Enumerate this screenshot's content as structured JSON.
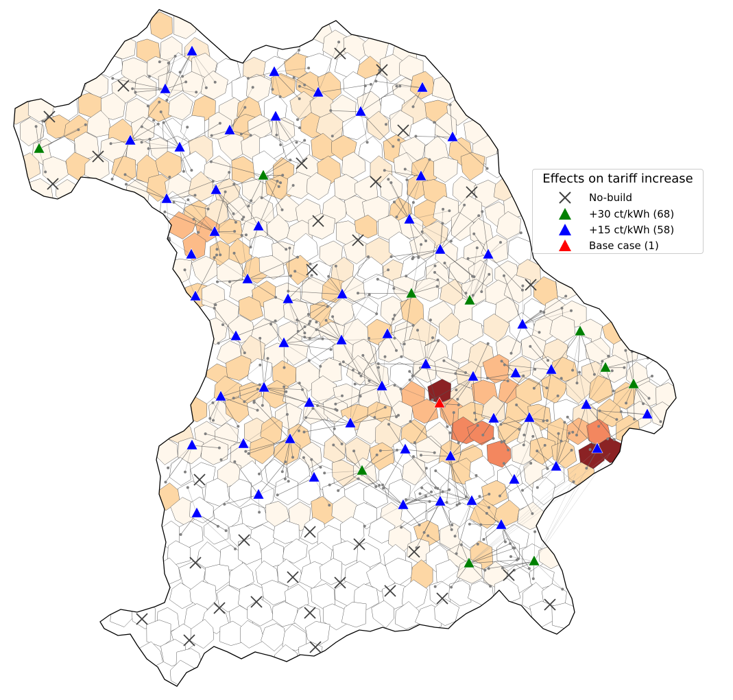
{
  "map": {
    "region": "Bavaria",
    "colors": {
      "border": "#000000",
      "cell_line": "#555555",
      "link_line": "#555555",
      "node": "#808080",
      "shade_1": "#fff7ec",
      "shade_2": "#fdebd2",
      "shade_3": "#fdd7a5",
      "shade_4": "#fcbb88",
      "shade_5": "#f3875f",
      "shade_6": "#8b2224"
    },
    "markers": {
      "nobuild": [
        [
          180,
          125
        ],
        [
          496,
          78
        ],
        [
          557,
          102
        ],
        [
          72,
          170
        ],
        [
          143,
          228
        ],
        [
          77,
          268
        ],
        [
          440,
          238
        ],
        [
          548,
          265
        ],
        [
          588,
          190
        ],
        [
          688,
          280
        ],
        [
          464,
          322
        ],
        [
          522,
          350
        ],
        [
          455,
          393
        ],
        [
          774,
          415
        ],
        [
          291,
          699
        ],
        [
          285,
          820
        ],
        [
          356,
          787
        ],
        [
          452,
          775
        ],
        [
          524,
          793
        ],
        [
          604,
          804
        ],
        [
          427,
          841
        ],
        [
          496,
          849
        ],
        [
          569,
          861
        ],
        [
          645,
          872
        ],
        [
          742,
          838
        ],
        [
          802,
          881
        ],
        [
          374,
          877
        ],
        [
          320,
          886
        ],
        [
          452,
          893
        ],
        [
          207,
          902
        ],
        [
          276,
          933
        ],
        [
          460,
          943
        ]
      ],
      "green": [
        [
          57,
          217
        ],
        [
          384,
          256
        ],
        [
          600,
          428
        ],
        [
          685,
          438
        ],
        [
          846,
          483
        ],
        [
          883,
          536
        ],
        [
          924,
          560
        ],
        [
          528,
          686
        ],
        [
          684,
          821
        ],
        [
          779,
          818
        ]
      ],
      "blue": [
        [
          280,
          75
        ],
        [
          400,
          105
        ],
        [
          464,
          135
        ],
        [
          241,
          130
        ],
        [
          616,
          128
        ],
        [
          526,
          163
        ],
        [
          402,
          170
        ],
        [
          335,
          190
        ],
        [
          190,
          205
        ],
        [
          262,
          215
        ],
        [
          660,
          200
        ],
        [
          614,
          257
        ],
        [
          315,
          277
        ],
        [
          243,
          290
        ],
        [
          597,
          320
        ],
        [
          377,
          330
        ],
        [
          313,
          338
        ],
        [
          642,
          364
        ],
        [
          712,
          371
        ],
        [
          279,
          371
        ],
        [
          361,
          407
        ],
        [
          285,
          432
        ],
        [
          420,
          436
        ],
        [
          499,
          429
        ],
        [
          762,
          473
        ],
        [
          344,
          490
        ],
        [
          414,
          500
        ],
        [
          498,
          496
        ],
        [
          565,
          487
        ],
        [
          621,
          531
        ],
        [
          690,
          549
        ],
        [
          752,
          544
        ],
        [
          804,
          539
        ],
        [
          385,
          565
        ],
        [
          557,
          563
        ],
        [
          451,
          587
        ],
        [
          322,
          578
        ],
        [
          855,
          590
        ],
        [
          944,
          604
        ],
        [
          720,
          610
        ],
        [
          772,
          609
        ],
        [
          511,
          617
        ],
        [
          423,
          640
        ],
        [
          355,
          647
        ],
        [
          280,
          649
        ],
        [
          591,
          655
        ],
        [
          657,
          665
        ],
        [
          871,
          654
        ],
        [
          811,
          680
        ],
        [
          458,
          696
        ],
        [
          750,
          699
        ],
        [
          377,
          721
        ],
        [
          642,
          731
        ],
        [
          688,
          730
        ],
        [
          588,
          736
        ],
        [
          287,
          748
        ],
        [
          731,
          765
        ]
      ],
      "red": [
        [
          641,
          588
        ]
      ]
    }
  },
  "legend": {
    "title": "Effects on tariff increase",
    "items": [
      {
        "label": "No-build",
        "kind": "x",
        "color": "#404040"
      },
      {
        "label": "+30 ct/kWh (68)",
        "kind": "triangle",
        "color": "#008000"
      },
      {
        "label": "+15 ct/kWh (58)",
        "kind": "triangle",
        "color": "#0000ff"
      },
      {
        "label": "Base case (1)",
        "kind": "triangle",
        "color": "#ff0000"
      }
    ]
  }
}
